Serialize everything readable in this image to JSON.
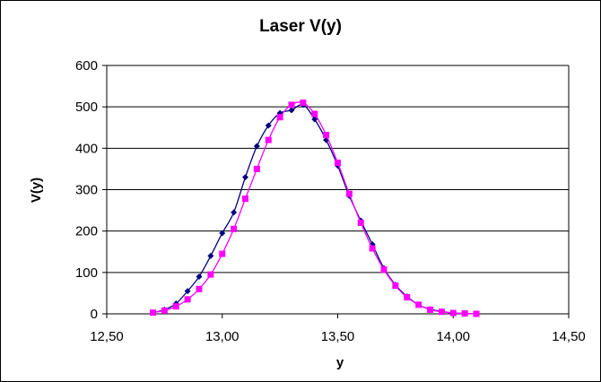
{
  "chart_data": {
    "type": "line",
    "title": "Laser V(y)",
    "xlabel": "y",
    "ylabel": "V(y)",
    "xlim": [
      12.5,
      14.5
    ],
    "ylim": [
      0,
      600
    ],
    "x_ticks": [
      "12,50",
      "13,00",
      "13,50",
      "14,00",
      "14,50"
    ],
    "y_ticks": [
      "0",
      "100",
      "200",
      "300",
      "400",
      "500",
      "600"
    ],
    "grid": "horizontal",
    "legend": "none",
    "series": [
      {
        "color": "#000080",
        "marker": "diamond",
        "points": [
          [
            12.7,
            3
          ],
          [
            12.75,
            10
          ],
          [
            12.8,
            25
          ],
          [
            12.85,
            55
          ],
          [
            12.9,
            90
          ],
          [
            12.95,
            140
          ],
          [
            13.0,
            195
          ],
          [
            13.05,
            245
          ],
          [
            13.1,
            330
          ],
          [
            13.15,
            405
          ],
          [
            13.2,
            455
          ],
          [
            13.25,
            485
          ],
          [
            13.3,
            492
          ],
          [
            13.35,
            505
          ],
          [
            13.4,
            470
          ],
          [
            13.45,
            420
          ],
          [
            13.5,
            358
          ],
          [
            13.55,
            285
          ],
          [
            13.6,
            225
          ],
          [
            13.65,
            168
          ],
          [
            13.7,
            110
          ],
          [
            13.75,
            70
          ],
          [
            13.8,
            42
          ],
          [
            13.85,
            22
          ],
          [
            13.9,
            11
          ],
          [
            13.95,
            6
          ],
          [
            14.0,
            2
          ],
          [
            14.05,
            1
          ],
          [
            14.1,
            0
          ]
        ]
      },
      {
        "color": "#FF00FF",
        "marker": "square",
        "points": [
          [
            12.7,
            3
          ],
          [
            12.75,
            8
          ],
          [
            12.8,
            18
          ],
          [
            12.85,
            35
          ],
          [
            12.9,
            60
          ],
          [
            12.95,
            95
          ],
          [
            13.0,
            145
          ],
          [
            13.05,
            205
          ],
          [
            13.1,
            278
          ],
          [
            13.15,
            350
          ],
          [
            13.2,
            420
          ],
          [
            13.25,
            475
          ],
          [
            13.3,
            505
          ],
          [
            13.35,
            510
          ],
          [
            13.4,
            483
          ],
          [
            13.45,
            432
          ],
          [
            13.5,
            365
          ],
          [
            13.55,
            290
          ],
          [
            13.6,
            220
          ],
          [
            13.65,
            158
          ],
          [
            13.7,
            107
          ],
          [
            13.75,
            68
          ],
          [
            13.8,
            40
          ],
          [
            13.85,
            22
          ],
          [
            13.9,
            10
          ],
          [
            13.95,
            5
          ],
          [
            14.0,
            2
          ],
          [
            14.05,
            1
          ],
          [
            14.1,
            0
          ]
        ]
      }
    ]
  }
}
